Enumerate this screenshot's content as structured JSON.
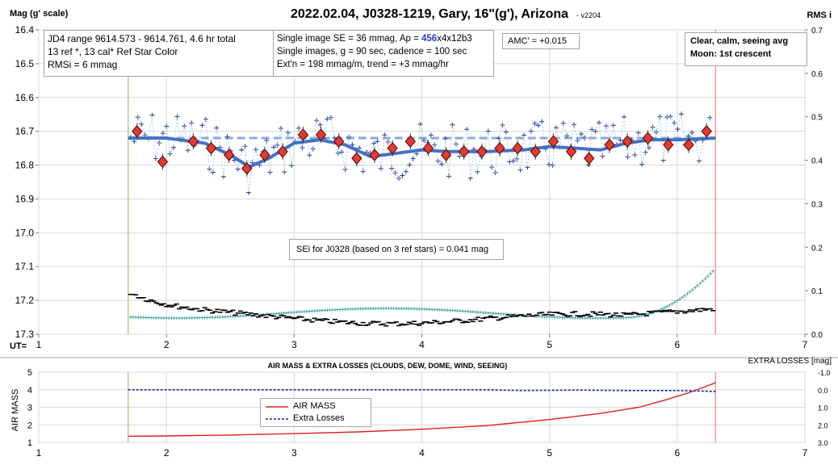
{
  "chart_data": [
    {
      "type": "line",
      "title": "2022.02.04, J0328-1219, Gary, 16\"(g'), Arizona",
      "version": "- v2204",
      "ylabel": "Mag (g' scale)",
      "y2label": "RMS i",
      "xlabel_prefix": "UT=",
      "xlim": [
        1,
        7
      ],
      "xticks": [
        "1",
        "2",
        "3",
        "4",
        "5",
        "6",
        "7"
      ],
      "ylim": [
        16.4,
        17.3
      ],
      "y_reversed": true,
      "yticks": [
        "16.4",
        "16.5",
        "16.6",
        "16.7",
        "16.8",
        "16.9",
        "17.0",
        "17.1",
        "17.2",
        "17.3"
      ],
      "y2lim": [
        0.0,
        0.7
      ],
      "y2ticks": [
        "0.0",
        "0.1",
        "0.2",
        "0.3",
        "0.4",
        "0.5",
        "0.6",
        "0.7"
      ],
      "grid": true,
      "start_line_x": 1.7,
      "end_line_x": 6.3,
      "reference_level": 16.72,
      "series": [
        {
          "kind": "binned-averages",
          "x": [
            1.77,
            1.97,
            2.21,
            2.35,
            2.49,
            2.63,
            2.77,
            2.91,
            3.07,
            3.21,
            3.35,
            3.49,
            3.63,
            3.77,
            3.91,
            4.05,
            4.19,
            4.33,
            4.47,
            4.61,
            4.75,
            4.89,
            5.03,
            5.17,
            5.31,
            5.47,
            5.61,
            5.77,
            5.93,
            6.09,
            6.23
          ],
          "y": [
            16.7,
            16.79,
            16.73,
            16.75,
            16.77,
            16.81,
            16.77,
            16.76,
            16.71,
            16.71,
            16.73,
            16.78,
            16.77,
            16.75,
            16.73,
            16.75,
            16.77,
            16.76,
            16.76,
            16.75,
            16.75,
            16.76,
            16.73,
            16.76,
            16.78,
            16.74,
            16.73,
            16.72,
            16.74,
            16.74,
            16.7
          ]
        },
        {
          "kind": "trend",
          "x": [
            1.7,
            2.0,
            2.3,
            2.5,
            2.65,
            2.8,
            3.0,
            3.2,
            3.4,
            3.6,
            3.8,
            4.0,
            4.2,
            4.5,
            4.8,
            5.0,
            5.2,
            5.4,
            5.6,
            5.8,
            6.0,
            6.3
          ],
          "y": [
            16.72,
            16.72,
            16.735,
            16.77,
            16.805,
            16.78,
            16.735,
            16.725,
            16.74,
            16.775,
            16.765,
            16.755,
            16.76,
            16.76,
            16.755,
            16.745,
            16.75,
            16.755,
            16.735,
            16.725,
            16.725,
            16.72
          ]
        }
      ],
      "annotations": {
        "info_box": [
          "JD4 range 9614.573 - 9614.761, 4.6 hr total",
          "13 ref *, 13 cal*  Ref Star Color",
          "RMSi = 6 mmag"
        ],
        "settings_line1_a": "Single image SE = 36 mmag, Ap = ",
        "settings_line1_b": "456",
        "settings_line1_c": "x4x12b3",
        "settings_line2": "Single images, g = 90 sec, cadence = 100 sec",
        "settings_line3": "Ext'n = 198 mmag/m, trend = +3 mmag/hr",
        "amc": "AMC' = +0.015",
        "sky_line1": "Clear, calm, seeing avg",
        "sky_line2": "Moon: 1st crescent",
        "sei": "SEi for J0328 (based on 3 ref stars) = 0.041 mag"
      }
    },
    {
      "type": "line",
      "title": "AIR MASS & EXTRA LOSSES (CLOUDS, DEW, DOME, WIND, SEEING)",
      "ylabel": "AIR MASS",
      "y2label": "EXTRA LOSSES [mag]",
      "xlim": [
        1,
        7
      ],
      "xticks": [
        "1",
        "2",
        "3",
        "4",
        "5",
        "6",
        "7"
      ],
      "ylim": [
        1,
        5
      ],
      "yticks": [
        "1",
        "2",
        "3",
        "4",
        "5"
      ],
      "y2lim": [
        3.0,
        -1.0
      ],
      "y2ticks": [
        "-1.0",
        "0.0",
        "1.0",
        "2.0",
        "3.0"
      ],
      "grid": true,
      "start_line_x": 1.7,
      "end_line_x": 6.3,
      "series": [
        {
          "name": "AIR MASS",
          "color": "#e02020",
          "x": [
            1.7,
            2.0,
            2.5,
            3.0,
            3.5,
            4.0,
            4.5,
            5.0,
            5.4,
            5.7,
            5.9,
            6.1,
            6.3
          ],
          "y": [
            1.35,
            1.37,
            1.42,
            1.5,
            1.6,
            1.75,
            1.95,
            2.3,
            2.65,
            3.0,
            3.4,
            3.85,
            4.4
          ]
        },
        {
          "name": "Extra Losses",
          "color": "#1a2b9c",
          "x": [
            1.7,
            2.5,
            3.0,
            3.5,
            4.0,
            4.5,
            4.8,
            5.2,
            5.6,
            6.0,
            6.3
          ],
          "y": [
            0.0,
            0.0,
            0.0,
            0.0,
            0.0,
            0.0,
            0.05,
            0.02,
            0.05,
            0.05,
            0.1
          ]
        }
      ]
    }
  ]
}
